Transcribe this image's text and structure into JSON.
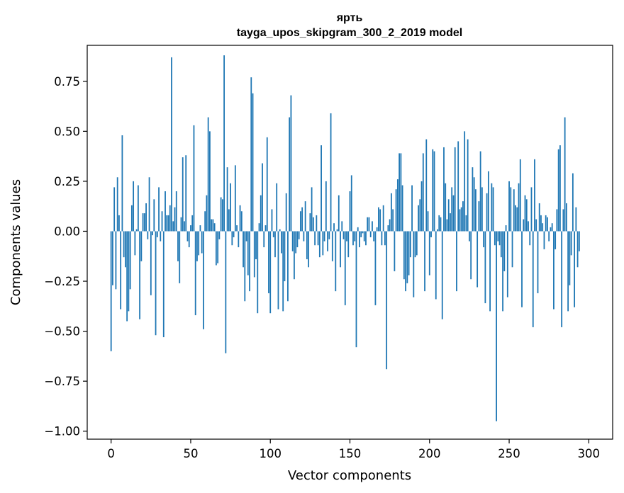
{
  "chart_data": {
    "type": "bar",
    "title": "ярть",
    "subtitle": "tayga_upos_skipgram_300_2_2019 model",
    "xlabel": "Vector components",
    "ylabel": "Components values",
    "xlim": [
      -15,
      315
    ],
    "ylim": [
      -1.04,
      0.93
    ],
    "xticks": [
      0,
      50,
      100,
      150,
      200,
      250,
      300
    ],
    "yticks": [
      -1.0,
      -0.75,
      -0.5,
      -0.25,
      0.0,
      0.25,
      0.5,
      0.75
    ],
    "ytick_labels": [
      "−1.00",
      "−0.75",
      "−0.50",
      "−0.25",
      "0.00",
      "0.25",
      "0.50",
      "0.75"
    ],
    "xtick_labels": [
      "0",
      "50",
      "100",
      "150",
      "200",
      "250",
      "300"
    ],
    "color": "#1f77b4",
    "grid": false,
    "values": [
      -0.6,
      -0.27,
      0.22,
      -0.29,
      0.27,
      0.08,
      -0.39,
      0.48,
      -0.13,
      -0.18,
      -0.45,
      -0.4,
      -0.29,
      0.13,
      0.25,
      -0.12,
      0.01,
      0.23,
      -0.44,
      -0.15,
      0.09,
      0.09,
      0.14,
      -0.04,
      0.27,
      -0.32,
      -0.02,
      0.16,
      -0.52,
      -0.03,
      0.22,
      -0.05,
      0.1,
      -0.53,
      0.2,
      0.08,
      0.08,
      0.13,
      0.87,
      0.05,
      0.12,
      0.2,
      -0.15,
      -0.26,
      0.07,
      0.37,
      0.05,
      0.38,
      -0.05,
      -0.08,
      0.03,
      0.08,
      0.53,
      -0.42,
      -0.15,
      -0.12,
      0.03,
      -0.11,
      -0.49,
      0.1,
      0.18,
      0.57,
      0.5,
      0.06,
      0.06,
      0.04,
      -0.17,
      -0.16,
      -0.04,
      0.17,
      0.16,
      0.88,
      -0.61,
      0.32,
      0.11,
      0.24,
      -0.07,
      -0.03,
      0.33,
      0.03,
      -0.08,
      0.13,
      0.1,
      -0.18,
      -0.35,
      -0.05,
      -0.22,
      -0.3,
      0.77,
      0.69,
      -0.23,
      -0.14,
      -0.41,
      0.04,
      0.18,
      0.34,
      -0.08,
      0.03,
      0.47,
      -0.31,
      -0.41,
      0.11,
      -0.03,
      -0.13,
      0.24,
      -0.39,
      0.01,
      -0.11,
      -0.4,
      -0.25,
      0.19,
      -0.35,
      0.57,
      0.68,
      -0.1,
      -0.24,
      -0.11,
      -0.08,
      -0.04,
      0.1,
      0.12,
      -0.05,
      0.15,
      -0.14,
      -0.18,
      0.09,
      0.22,
      0.07,
      -0.07,
      0.08,
      -0.07,
      -0.13,
      0.43,
      -0.12,
      -0.05,
      0.25,
      -0.1,
      -0.04,
      0.59,
      -0.15,
      0.04,
      -0.3,
      0.01,
      0.18,
      -0.18,
      0.05,
      -0.04,
      -0.37,
      -0.05,
      -0.13,
      0.2,
      0.28,
      -0.07,
      -0.05,
      -0.58,
      0.02,
      -0.08,
      -0.03,
      -0.01,
      -0.05,
      -0.07,
      0.07,
      0.07,
      -0.03,
      0.05,
      -0.05,
      -0.37,
      0.02,
      0.12,
      0.11,
      -0.07,
      0.13,
      -0.07,
      -0.69,
      0.03,
      0.06,
      0.19,
      0.11,
      -0.2,
      0.21,
      0.26,
      0.39,
      0.39,
      0.23,
      -0.24,
      -0.3,
      -0.26,
      -0.22,
      -0.13,
      0.23,
      -0.33,
      -0.13,
      -0.12,
      0.13,
      0.16,
      0.25,
      0.39,
      -0.3,
      0.46,
      0.1,
      -0.22,
      -0.03,
      0.41,
      0.4,
      -0.34,
      0.01,
      0.08,
      0.07,
      -0.44,
      0.42,
      0.24,
      0.06,
      0.16,
      0.09,
      0.22,
      0.18,
      0.42,
      -0.3,
      0.45,
      0.11,
      0.12,
      0.15,
      0.5,
      0.08,
      0.46,
      -0.05,
      -0.24,
      0.32,
      0.27,
      0.21,
      -0.28,
      0.15,
      0.4,
      0.22,
      -0.08,
      -0.36,
      0.19,
      0.3,
      -0.4,
      0.24,
      0.22,
      -0.07,
      -0.95,
      -0.05,
      -0.07,
      -0.13,
      -0.4,
      -0.2,
      0.03,
      -0.33,
      0.25,
      0.22,
      -0.18,
      0.21,
      0.13,
      0.12,
      0.24,
      0.36,
      -0.38,
      0.06,
      0.18,
      0.16,
      0.05,
      -0.07,
      0.22,
      -0.48,
      0.36,
      0.06,
      -0.31,
      0.14,
      0.08,
      0.04,
      -0.09,
      0.08,
      0.07,
      -0.05,
      0.02,
      0.04,
      -0.39,
      -0.09,
      0.11,
      0.41,
      0.43,
      -0.48,
      0.11,
      0.57,
      0.14,
      -0.4,
      -0.27,
      -0.12,
      0.29,
      -0.38,
      0.12,
      -0.18,
      -0.1
    ]
  }
}
